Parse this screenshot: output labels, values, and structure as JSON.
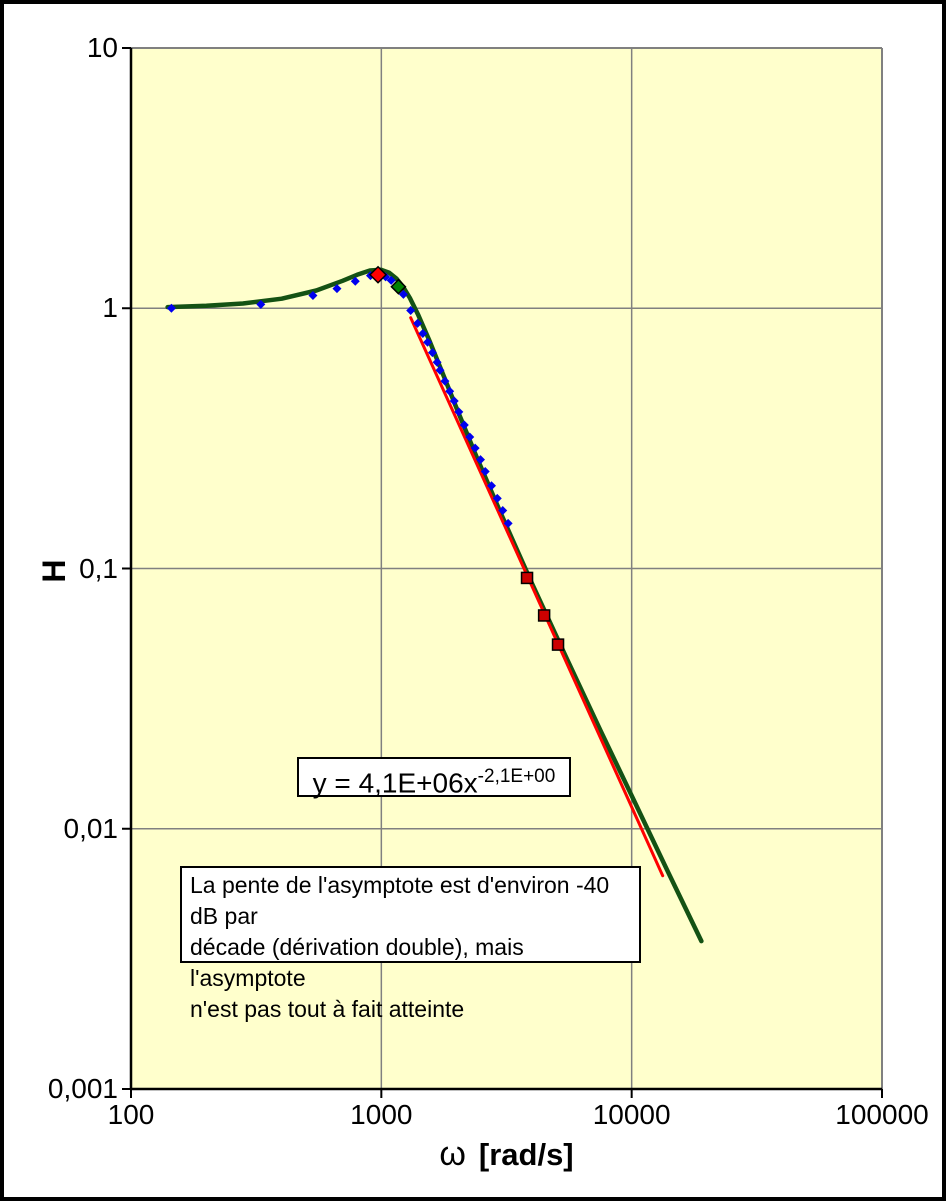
{
  "window": {
    "background": "#ffffff",
    "frame_color": "#000000"
  },
  "chart_data": {
    "type": "line",
    "title": "",
    "plot_bg": "#ffffcc",
    "grid_color": "#808080",
    "axis_color": "#000000",
    "grid": true,
    "legend": "none",
    "x_axis": {
      "title_symbol": "ω",
      "title_units": "[rad/s]",
      "scale": "log",
      "min": 100,
      "max": 100000,
      "ticks": [
        {
          "label": "100",
          "value": 100
        },
        {
          "label": "1000",
          "value": 1000
        },
        {
          "label": "10000",
          "value": 10000
        },
        {
          "label": "100000",
          "value": 100000
        }
      ]
    },
    "y_axis": {
      "title": "H",
      "scale": "log",
      "min": 0.001,
      "max": 10,
      "ticks": [
        {
          "label": "10",
          "value": 10
        },
        {
          "label": "1",
          "value": 1
        },
        {
          "label": "0,1",
          "value": 0.1
        },
        {
          "label": "0,01",
          "value": 0.01
        },
        {
          "label": "0,001",
          "value": 0.001
        }
      ]
    },
    "series": [
      {
        "name": "courbe-modele",
        "type": "line",
        "color": "#145214",
        "width": 4.5,
        "points": [
          [
            140,
            1.01
          ],
          [
            200,
            1.022
          ],
          [
            280,
            1.043
          ],
          [
            400,
            1.088
          ],
          [
            550,
            1.17
          ],
          [
            700,
            1.275
          ],
          [
            800,
            1.345
          ],
          [
            900,
            1.397
          ],
          [
            1000,
            1.405
          ],
          [
            1075,
            1.37
          ],
          [
            1150,
            1.3
          ],
          [
            1225,
            1.204
          ],
          [
            1300,
            1.095
          ],
          [
            1400,
            0.949
          ],
          [
            1550,
            0.758
          ],
          [
            1750,
            0.568
          ],
          [
            2000,
            0.412
          ],
          [
            2400,
            0.269
          ],
          [
            3000,
            0.163
          ],
          [
            4000,
            0.0876
          ],
          [
            5500,
            0.0451
          ],
          [
            7500,
            0.0239
          ],
          [
            10000,
            0.0134
          ],
          [
            14000,
            0.0068
          ],
          [
            19000,
            0.0037
          ]
        ]
      },
      {
        "name": "droite-tendance",
        "type": "line",
        "color": "#ff0000",
        "width": 3,
        "points": [
          [
            1310,
            0.92
          ],
          [
            13300,
            0.0066
          ]
        ]
      },
      {
        "name": "points-mesures",
        "type": "scatter",
        "marker": "diamond",
        "color": "#0000ee",
        "marker_size": 9,
        "points": [
          [
            145,
            1.0
          ],
          [
            330,
            1.035
          ],
          [
            533,
            1.12
          ],
          [
            665,
            1.19
          ],
          [
            787,
            1.27
          ],
          [
            905,
            1.335
          ],
          [
            1040,
            1.32
          ],
          [
            1095,
            1.28
          ],
          [
            1225,
            1.13
          ],
          [
            1310,
            0.98
          ],
          [
            1395,
            0.875
          ],
          [
            1465,
            0.8
          ],
          [
            1530,
            0.74
          ],
          [
            1600,
            0.675
          ],
          [
            1670,
            0.62
          ],
          [
            1715,
            0.578
          ],
          [
            1795,
            0.525
          ],
          [
            1875,
            0.48
          ],
          [
            1955,
            0.44
          ],
          [
            2040,
            0.4
          ],
          [
            2145,
            0.356
          ],
          [
            2255,
            0.32
          ],
          [
            2370,
            0.29
          ],
          [
            2490,
            0.262
          ],
          [
            2600,
            0.236
          ],
          [
            2755,
            0.208
          ],
          [
            2905,
            0.186
          ],
          [
            3055,
            0.167
          ],
          [
            3210,
            0.149
          ]
        ]
      },
      {
        "name": "point-pic-rouge",
        "type": "scatter",
        "marker": "diamond",
        "color": "#ff0000",
        "stroke": "#000000",
        "marker_size": 16,
        "points": [
          [
            970,
            1.345
          ]
        ]
      },
      {
        "name": "point-vert",
        "type": "scatter",
        "marker": "diamond",
        "color": "#008000",
        "stroke": "#000000",
        "marker_size": 14,
        "points": [
          [
            1170,
            1.21
          ]
        ]
      },
      {
        "name": "points-carres-rouges",
        "type": "scatter",
        "marker": "square",
        "color": "#cc0000",
        "stroke": "#000000",
        "marker_size": 11,
        "points": [
          [
            3820,
            0.092
          ],
          [
            4470,
            0.066
          ],
          [
            5080,
            0.051
          ]
        ]
      }
    ],
    "trendline_equation": {
      "base": "y = 4,1E+06x",
      "exponent": "-2,1E+00"
    },
    "annotation": {
      "lines": [
        "La pente de l'asymptote est d'environ -40 dB par",
        "décade (dérivation double), mais l'asymptote",
        "n'est pas tout à fait atteinte"
      ]
    }
  }
}
